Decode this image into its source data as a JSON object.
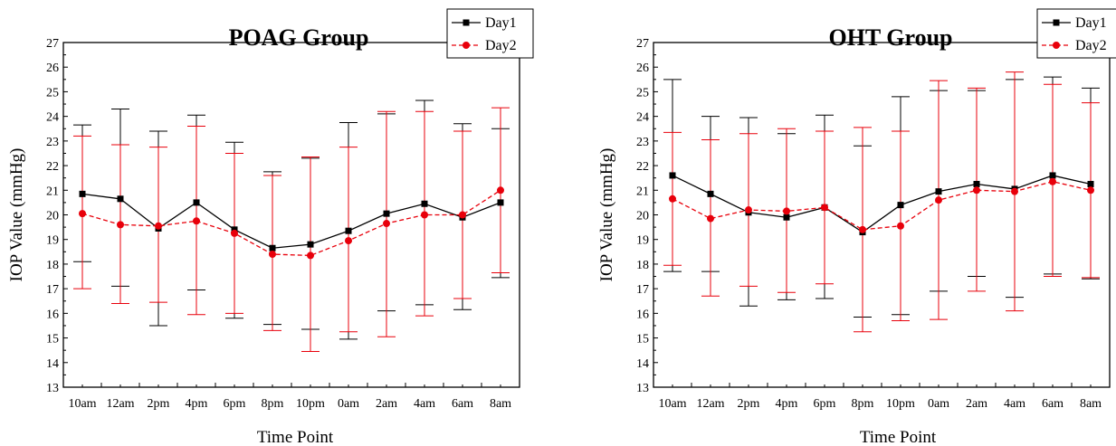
{
  "chart_data": [
    {
      "type": "line",
      "title": "POAG Group",
      "xlabel": "Time Point",
      "ylabel": "IOP Value (mmHg)",
      "ylim": [
        13,
        27
      ],
      "yticks": [
        13,
        14,
        15,
        16,
        17,
        18,
        19,
        20,
        21,
        22,
        23,
        24,
        25,
        26,
        27
      ],
      "categories": [
        "10am",
        "12am",
        "2pm",
        "4pm",
        "6pm",
        "8pm",
        "10pm",
        "0am",
        "2am",
        "4am",
        "6am",
        "8am"
      ],
      "legend_position": "top-right",
      "grid": false,
      "series": [
        {
          "name": "Day1",
          "color": "#000000",
          "marker": "square",
          "line_style": "solid",
          "values": [
            20.85,
            20.65,
            19.45,
            20.5,
            19.4,
            18.65,
            18.8,
            19.35,
            20.05,
            20.45,
            19.9,
            20.5
          ],
          "error_low": [
            18.1,
            17.1,
            15.5,
            16.95,
            15.8,
            15.55,
            15.35,
            14.95,
            16.1,
            16.35,
            16.15,
            17.45
          ],
          "error_high": [
            23.65,
            24.3,
            23.4,
            24.05,
            22.95,
            21.75,
            22.3,
            23.75,
            24.1,
            24.65,
            23.7,
            23.5
          ]
        },
        {
          "name": "Day2",
          "color": "#e8000b",
          "marker": "circle",
          "line_style": "dashed",
          "values": [
            20.05,
            19.6,
            19.55,
            19.75,
            19.25,
            18.4,
            18.35,
            18.95,
            19.65,
            20.0,
            20.0,
            21.0
          ],
          "error_low": [
            17.0,
            16.4,
            16.45,
            15.95,
            16.0,
            15.3,
            14.45,
            15.25,
            15.05,
            15.9,
            16.6,
            17.65
          ],
          "error_high": [
            23.2,
            22.85,
            22.75,
            23.6,
            22.5,
            21.6,
            22.35,
            22.75,
            24.2,
            24.2,
            23.4,
            24.35
          ]
        }
      ]
    },
    {
      "type": "line",
      "title": "OHT Group",
      "xlabel": "Time Point",
      "ylabel": "IOP Value (mmHg)",
      "ylim": [
        13,
        27
      ],
      "yticks": [
        13,
        14,
        15,
        16,
        17,
        18,
        19,
        20,
        21,
        22,
        23,
        24,
        25,
        26,
        27
      ],
      "categories": [
        "10am",
        "12am",
        "2pm",
        "4pm",
        "6pm",
        "8pm",
        "10pm",
        "0am",
        "2am",
        "4am",
        "6am",
        "8am"
      ],
      "legend_position": "top-right",
      "grid": false,
      "series": [
        {
          "name": "Day1",
          "color": "#000000",
          "marker": "square",
          "line_style": "solid",
          "values": [
            21.6,
            20.85,
            20.1,
            19.9,
            20.3,
            19.3,
            20.4,
            20.95,
            21.25,
            21.05,
            21.6,
            21.25
          ],
          "error_low": [
            17.7,
            17.7,
            16.3,
            16.55,
            16.6,
            15.85,
            15.95,
            16.9,
            17.5,
            16.65,
            17.6,
            17.4
          ],
          "error_high": [
            25.5,
            24.0,
            23.95,
            23.3,
            24.05,
            22.8,
            24.8,
            25.05,
            25.05,
            25.5,
            25.6,
            25.15
          ]
        },
        {
          "name": "Day2",
          "color": "#e8000b",
          "marker": "circle",
          "line_style": "dashed",
          "values": [
            20.65,
            19.85,
            20.2,
            20.15,
            20.3,
            19.4,
            19.55,
            20.6,
            21.0,
            20.95,
            21.35,
            21.0
          ],
          "error_low": [
            17.95,
            16.7,
            17.1,
            16.85,
            17.2,
            15.25,
            15.7,
            15.75,
            16.9,
            16.1,
            17.5,
            17.45
          ],
          "error_high": [
            23.35,
            23.05,
            23.3,
            23.5,
            23.4,
            23.55,
            23.4,
            25.45,
            25.15,
            25.8,
            25.3,
            24.55
          ]
        }
      ]
    }
  ]
}
